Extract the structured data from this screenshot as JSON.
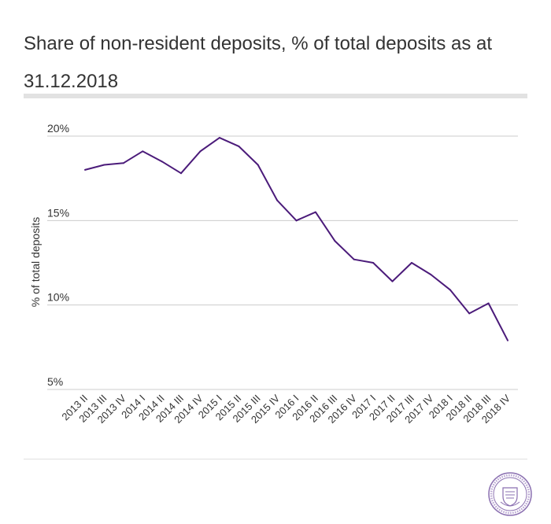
{
  "title": "Share of non-resident deposits, % of total deposits as at 31.12.2018",
  "colors": {
    "line": "#4b1b7a",
    "grid": "#cccccc",
    "axis": "#555555",
    "logo": "#8a6fb0"
  },
  "logo_icon": "eesti-pank-seal",
  "chart_data": {
    "type": "line",
    "ylabel": "% of total deposits",
    "ylim": [
      5,
      20
    ],
    "yticks": [
      5,
      10,
      15,
      20
    ],
    "ytick_labels": [
      "5%",
      "10%",
      "15%",
      "20%"
    ],
    "grid": true,
    "categories": [
      "2013 II",
      "2013 III",
      "2013 IV",
      "2014 I",
      "2014 II",
      "2014 III",
      "2014 IV",
      "2015 I",
      "2015 II",
      "2015 III",
      "2015 IV",
      "2016 I",
      "2016 II",
      "2016 III",
      "2016 IV",
      "2017 I",
      "2017 II",
      "2017 III",
      "2017 IV",
      "2018 I",
      "2018 II",
      "2018 III",
      "2018 IV"
    ],
    "series": [
      {
        "values": [
          18.0,
          18.3,
          18.4,
          19.1,
          18.5,
          17.8,
          19.1,
          19.9,
          19.4,
          18.3,
          16.2,
          15.0,
          15.5,
          13.8,
          12.7,
          12.5,
          11.4,
          12.5,
          11.8,
          10.9,
          9.5,
          10.1,
          7.9
        ]
      }
    ]
  }
}
